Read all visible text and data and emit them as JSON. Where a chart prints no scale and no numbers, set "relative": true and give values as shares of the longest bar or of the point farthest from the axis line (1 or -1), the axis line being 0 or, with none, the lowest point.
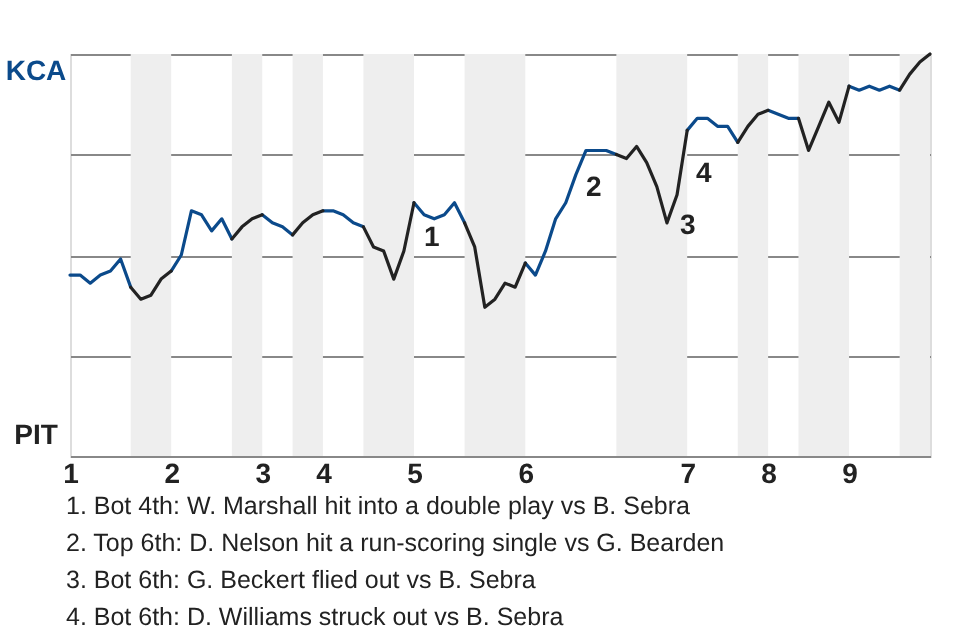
{
  "chart_data": {
    "type": "line",
    "relative": true,
    "categories": [
      "1",
      null,
      null,
      null,
      null,
      null,
      null,
      null,
      null,
      null,
      "2",
      null,
      null,
      null,
      null,
      null,
      null,
      null,
      null,
      "3",
      null,
      null,
      null,
      null,
      null,
      "4",
      null,
      null,
      null,
      null,
      null,
      null,
      null,
      null,
      "5",
      null,
      null,
      null,
      null,
      null,
      null,
      null,
      null,
      null,
      null,
      "6",
      null,
      null,
      null,
      null,
      null,
      null,
      null,
      null,
      null,
      null,
      null,
      null,
      null,
      null,
      null,
      "7",
      null,
      null,
      null,
      null,
      null,
      null,
      null,
      "8",
      null,
      null,
      null,
      null,
      null,
      null,
      null,
      "9",
      null,
      null,
      null,
      null,
      null,
      null,
      null,
      null
    ],
    "series": [
      {
        "color": "#0b4a8b",
        "values": [
          0.45,
          0.45,
          0.43,
          0.45,
          0.46,
          0.49,
          0.42,
          null,
          null,
          null,
          0.46,
          0.5,
          0.61,
          0.6,
          0.56,
          0.59,
          0.54,
          null,
          null,
          0.6,
          0.58,
          0.57,
          0.55,
          null,
          null,
          0.61,
          0.61,
          0.6,
          0.58,
          0.57,
          null,
          null,
          null,
          null,
          0.63,
          0.6,
          0.59,
          0.6,
          0.63,
          0.58,
          null,
          null,
          null,
          null,
          null,
          0.48,
          0.45,
          0.51,
          0.59,
          0.63,
          0.7,
          0.76,
          0.76,
          0.76,
          0.75,
          null,
          null,
          null,
          null,
          null,
          null,
          0.81,
          0.84,
          0.84,
          0.82,
          0.82,
          0.78,
          null,
          null,
          0.86,
          0.85,
          0.84,
          0.84,
          null,
          null,
          null,
          null,
          0.92,
          0.91,
          0.92,
          0.91,
          0.92,
          0.91,
          null,
          null,
          null
        ]
      },
      {
        "color": "#222222",
        "values": [
          null,
          null,
          null,
          null,
          null,
          null,
          0.42,
          0.39,
          0.4,
          0.44,
          0.46,
          null,
          null,
          null,
          null,
          null,
          0.54,
          0.57,
          0.59,
          0.6,
          null,
          null,
          0.55,
          0.58,
          0.6,
          0.61,
          null,
          null,
          null,
          0.57,
          0.52,
          0.51,
          0.44,
          0.51,
          0.63,
          null,
          null,
          null,
          null,
          0.58,
          0.52,
          0.37,
          0.39,
          0.43,
          0.42,
          0.48,
          null,
          null,
          null,
          null,
          null,
          null,
          null,
          null,
          0.75,
          0.74,
          0.77,
          0.73,
          0.67,
          0.58,
          0.65,
          0.81,
          null,
          null,
          null,
          null,
          0.78,
          0.82,
          0.85,
          0.86,
          null,
          null,
          0.84,
          0.76,
          0.82,
          0.88,
          0.83,
          0.92,
          null,
          null,
          null,
          null,
          0.91,
          0.95,
          0.98,
          1.0
        ]
      }
    ],
    "grid": "y",
    "annotations": [
      "KCA",
      "PIT",
      "1",
      "2",
      "3",
      "4",
      "1. Bot 4th: W. Marshall hit into a double play vs B. Sebra",
      "2. Top 6th: D. Nelson hit a run-scoring single vs G. Bearden",
      "3. Bot 6th: G. Beckert flied out vs B. Sebra",
      "4. Bot 6th: D. Williams struck out vs B. Sebra"
    ]
  }
}
